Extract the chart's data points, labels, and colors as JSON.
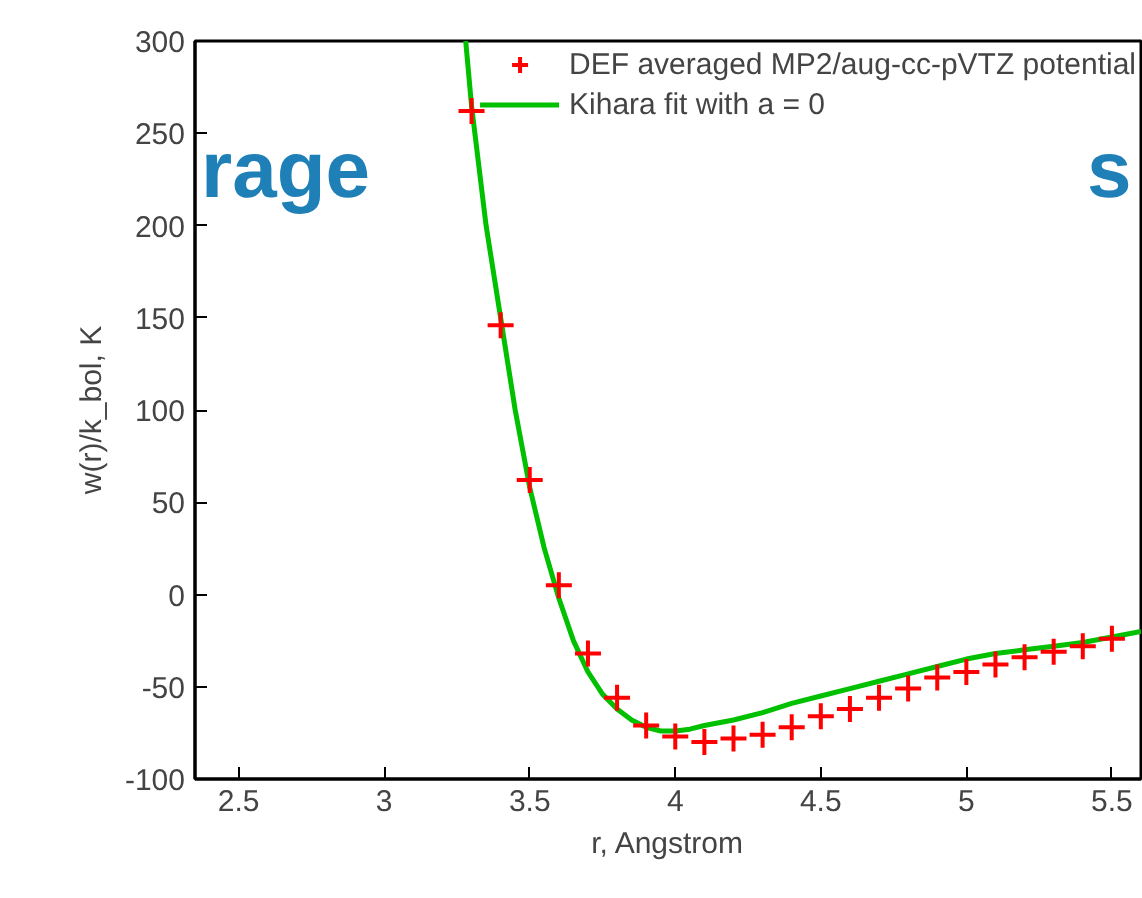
{
  "chart_data": {
    "type": "scatter",
    "xlabel": "r, Angstrom",
    "ylabel": "w(r)/k_bol, K",
    "xlim": [
      2.35,
      5.6
    ],
    "ylim": [
      -100,
      300
    ],
    "xticks": [
      2.5,
      3,
      3.5,
      4,
      4.5,
      5,
      5.5
    ],
    "yticks": [
      -100,
      -50,
      0,
      50,
      100,
      150,
      200,
      250,
      300
    ],
    "grid": false,
    "legend": "top right",
    "annotations": [
      "rage",
      "s"
    ],
    "series": [
      {
        "name": "DEF averaged MP2/aug-cc-pVTZ potential",
        "marker": "cross",
        "color": "#ff0000",
        "x": [
          3.3,
          3.4,
          3.5,
          3.6,
          3.7,
          3.8,
          3.9,
          4.0,
          4.1,
          4.2,
          4.3,
          4.4,
          4.5,
          4.6,
          4.7,
          4.8,
          4.9,
          5.0,
          5.1,
          5.2,
          5.3,
          5.4,
          5.5
        ],
        "values": [
          262,
          146,
          62,
          5,
          -32,
          -56,
          -71,
          -77,
          -80,
          -78,
          -76,
          -72,
          -66,
          -62,
          -56,
          -51,
          -45,
          -42,
          -38,
          -34,
          -31,
          -28,
          -24
        ]
      },
      {
        "name": "Kihara fit with a = 0",
        "type": "line",
        "marker": "none",
        "line_style": "solid",
        "color": "#00c000",
        "x": [
          3.28,
          3.3,
          3.35,
          3.4,
          3.45,
          3.5,
          3.55,
          3.6,
          3.65,
          3.7,
          3.75,
          3.8,
          3.85,
          3.9,
          3.95,
          4.0,
          4.05,
          4.1,
          4.2,
          4.3,
          4.4,
          4.5,
          4.6,
          4.7,
          4.8,
          4.9,
          5.0,
          5.1,
          5.2,
          5.3,
          5.4,
          5.5,
          5.6
        ],
        "values": [
          300,
          265,
          200,
          150,
          100,
          58,
          25,
          -2,
          -25,
          -42,
          -54,
          -62,
          -68,
          -72,
          -74,
          -74,
          -73,
          -71,
          -68,
          -64,
          -59,
          -55,
          -51,
          -47,
          -43,
          -39,
          -35,
          -32,
          -30,
          -28,
          -26,
          -23,
          -20
        ]
      }
    ]
  }
}
